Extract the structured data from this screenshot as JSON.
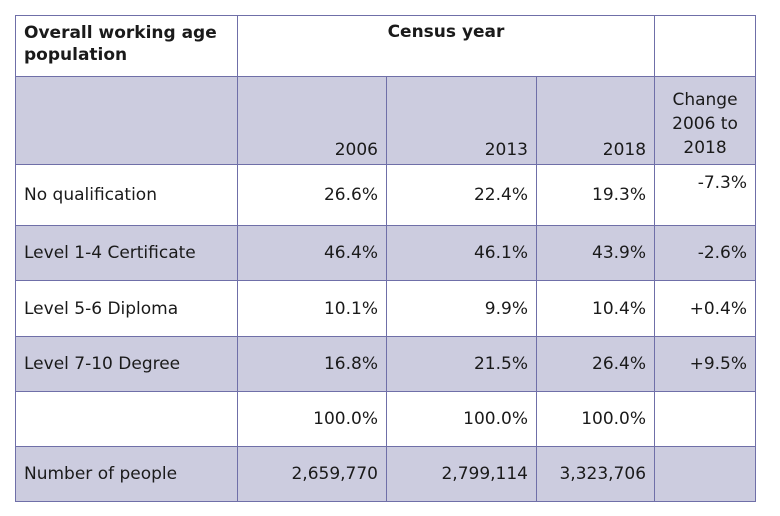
{
  "table": {
    "title": "Overall working age population",
    "group_header": "Census year",
    "columns": [
      "2006",
      "2013",
      "2018"
    ],
    "change_header": "Change\n2006 to\n2018",
    "rows": [
      {
        "label": "No qualification",
        "values": [
          "26.6%",
          "22.4%",
          "19.3%"
        ],
        "change": "-7.3%"
      },
      {
        "label": "Level 1-4 Certificate",
        "values": [
          "46.4%",
          "46.1%",
          "43.9%"
        ],
        "change": "-2.6%"
      },
      {
        "label": "Level 5-6 Diploma",
        "values": [
          "10.1%",
          "9.9%",
          "10.4%"
        ],
        "change": "+0.4%"
      },
      {
        "label": "Level 7-10 Degree",
        "values": [
          "16.8%",
          "21.5%",
          "26.4%"
        ],
        "change": "+9.5%"
      },
      {
        "label": "",
        "values": [
          "100.0%",
          "100.0%",
          "100.0%"
        ],
        "change": ""
      },
      {
        "label": "Number of people",
        "values": [
          "2,659,770",
          "2,799,114",
          "3,323,706"
        ],
        "change": ""
      }
    ]
  },
  "colors": {
    "shaded_row": "#ccccdf",
    "border": "#6f6fa8"
  }
}
